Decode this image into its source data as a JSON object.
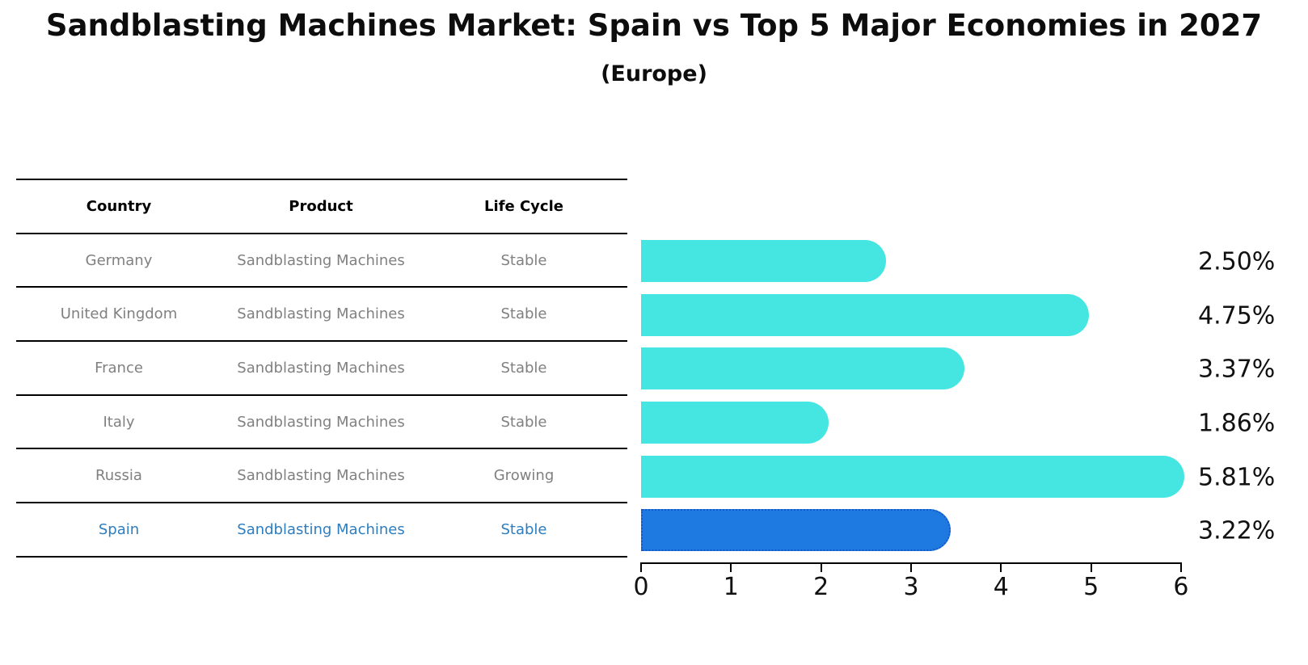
{
  "title": "Sandblasting Machines Market: Spain vs Top 5 Major Economies in 2027",
  "subtitle": "(Europe)",
  "table": {
    "columns": [
      "Country",
      "Product",
      "Life Cycle"
    ],
    "rows": [
      {
        "country": "Germany",
        "product": "Sandblasting Machines",
        "life_cycle": "Stable"
      },
      {
        "country": "United Kingdom",
        "product": "Sandblasting Machines",
        "life_cycle": "Stable"
      },
      {
        "country": "France",
        "product": "Sandblasting Machines",
        "life_cycle": "Stable"
      },
      {
        "country": "Italy",
        "product": "Sandblasting Machines",
        "life_cycle": "Stable"
      },
      {
        "country": "Russia",
        "product": "Sandblasting Machines",
        "life_cycle": "Growing"
      },
      {
        "country": "Spain",
        "product": "Sandblasting Machines",
        "life_cycle": "Stable"
      }
    ]
  },
  "chart_data": {
    "type": "bar",
    "orientation": "horizontal",
    "title": "Sandblasting Machines Market: Spain vs Top 5 Major Economies in 2027 (Europe)",
    "categories": [
      "Germany",
      "United Kingdom",
      "France",
      "Italy",
      "Russia",
      "Spain"
    ],
    "values": [
      2.5,
      4.75,
      3.37,
      1.86,
      5.81,
      3.22
    ],
    "labels": [
      "2.50%",
      "4.75%",
      "3.37%",
      "1.86%",
      "5.81%",
      "3.22%"
    ],
    "x_ticks": [
      "0",
      "1",
      "2",
      "3",
      "4",
      "5",
      "6"
    ],
    "xlim": [
      0,
      6
    ],
    "grid": false,
    "legend": false,
    "highlight_index": 5,
    "bar_color": "#45E6E1",
    "highlight_color": "#1E7AE1",
    "highlight_border_color": "#1359C7"
  },
  "colors": {
    "title_text": "#0d0d0d",
    "table_text_gray": "#808080",
    "highlight_text_blue": "#2d7dbf"
  }
}
